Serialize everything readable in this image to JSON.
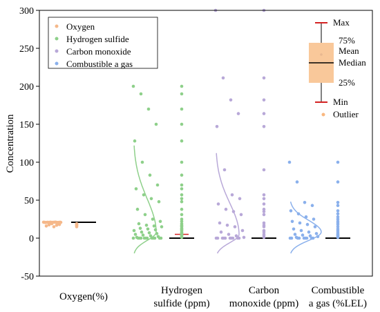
{
  "chart_data": {
    "type": "scatter",
    "ylabel": "Concentration",
    "ylim": [
      -50,
      300
    ],
    "yticks": [
      -50,
      0,
      50,
      100,
      150,
      200,
      250,
      300
    ],
    "categories": [
      "Oxygen(%)",
      "Hydrogen\nsulfide (ppm)",
      "Carbon\nmonoxide (ppm)",
      "Combustible\na gas (%LEL)"
    ],
    "series": [
      {
        "name": "Oxygen",
        "color": "#f5b88a",
        "points": [
          21,
          20.9,
          20.8,
          20.7,
          21,
          20.6,
          20.9,
          20.8,
          21,
          20.5,
          20.9,
          21,
          20.8,
          20.7,
          21,
          20.9,
          20.6,
          20.8,
          21,
          20.9,
          19,
          18,
          17.5,
          17,
          16,
          15
        ],
        "box": {
          "min": 20.9,
          "q1": 20.9,
          "median": 20.9,
          "q3": 20.9,
          "max": 20.9,
          "mean": 20.9
        },
        "outliers": [
          19,
          18,
          17.5,
          17,
          16,
          15
        ]
      },
      {
        "name": "Hydrogen sulfide",
        "color": "#8ed08a",
        "points": [
          200,
          190,
          170,
          150,
          128,
          100,
          83,
          70,
          65,
          57,
          52,
          48,
          38,
          31,
          25,
          22,
          19,
          17,
          16,
          15,
          13,
          12,
          11,
          10,
          8,
          7,
          6,
          5,
          4,
          3,
          2,
          1,
          0,
          0,
          0,
          0,
          0,
          0,
          0,
          0,
          0,
          0,
          0,
          0
        ],
        "box": {
          "min": 0,
          "q1": 0,
          "median": 0,
          "q3": 0,
          "max": 0,
          "mean": 5
        },
        "outliers": [
          200,
          190,
          170,
          150,
          128,
          100,
          83,
          70,
          65,
          57,
          52,
          48,
          38,
          31,
          25,
          22,
          19,
          17,
          16,
          15,
          13,
          12,
          11,
          10,
          8,
          7,
          6,
          5,
          4,
          3,
          2,
          1
        ]
      },
      {
        "name": "Carbon monoxide",
        "color": "#b8a8d8",
        "points": [
          300,
          211,
          182,
          164,
          147,
          90,
          57,
          52,
          45,
          38,
          35,
          31,
          20,
          17,
          15,
          10,
          8,
          5,
          3,
          1,
          0,
          0,
          0,
          0,
          0,
          0,
          0,
          0,
          0,
          0
        ],
        "box": {
          "min": 0,
          "q1": 0,
          "median": 0,
          "q3": 0,
          "max": 0,
          "mean": 0
        },
        "outliers": [
          300,
          211,
          182,
          164,
          147,
          90,
          57,
          52,
          45,
          38,
          35,
          31,
          20,
          17,
          15,
          10,
          8,
          5,
          3,
          1
        ]
      },
      {
        "name": "Combustible a gas",
        "color": "#8ab0ec",
        "points": [
          100,
          74,
          47,
          43,
          36,
          32,
          28,
          25,
          22,
          20,
          18,
          15,
          12,
          10,
          8,
          6,
          5,
          4,
          3,
          2,
          1,
          0,
          0,
          0,
          0,
          0,
          0,
          0,
          0,
          0
        ],
        "box": {
          "min": 0,
          "q1": 0,
          "median": 0,
          "q3": 0,
          "max": 0,
          "mean": 0
        },
        "outliers": [
          100,
          74,
          47,
          43,
          36,
          32,
          28,
          25,
          22,
          20,
          18,
          15,
          12,
          10,
          8,
          6,
          5,
          4,
          3,
          2,
          1
        ]
      }
    ],
    "key": {
      "labels": [
        "Max",
        "75%",
        "Mean",
        "Median",
        "25%",
        "Min",
        "Outlier"
      ],
      "box_color": "#f9c89a",
      "whisker_color": "#d42020"
    },
    "grid": false,
    "legend_position": "top-left"
  }
}
